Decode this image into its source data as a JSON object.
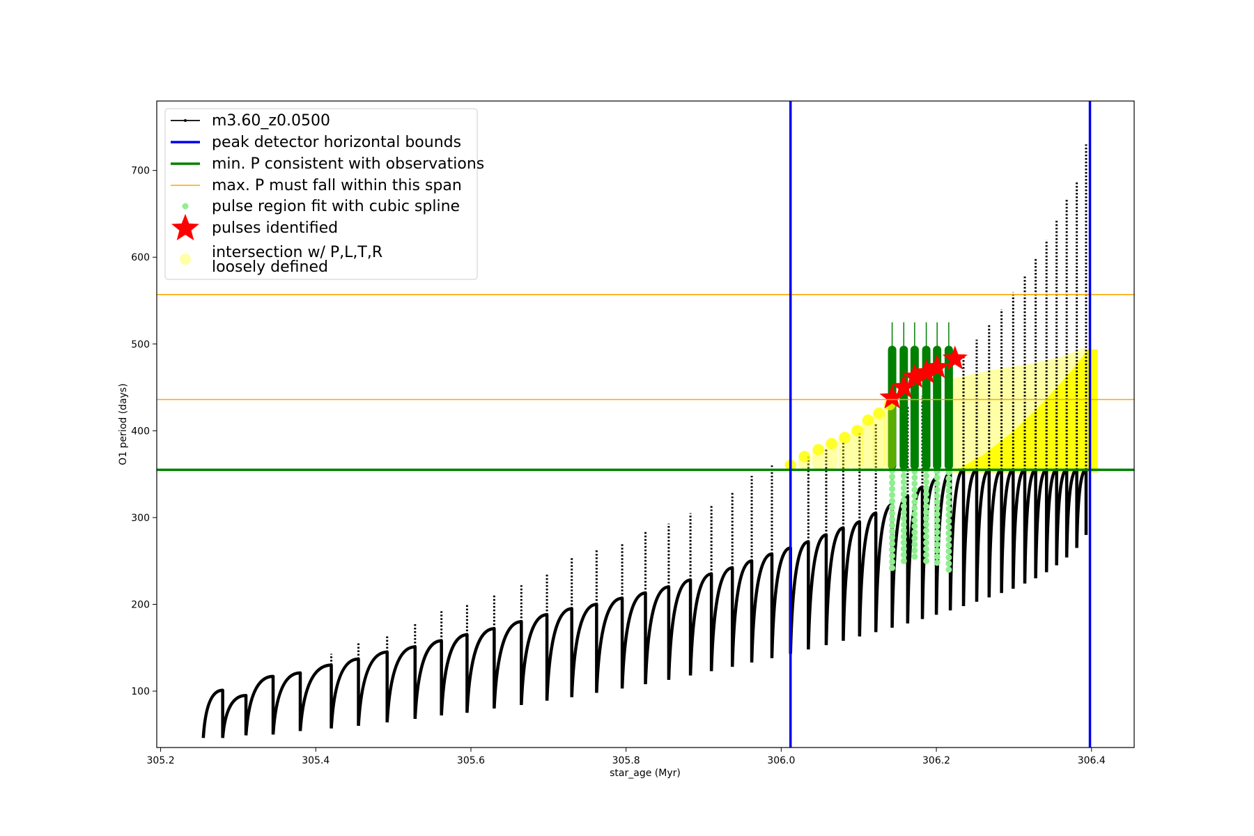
{
  "chart_data": {
    "type": "line",
    "xlabel": "star_age (Myr)",
    "ylabel": "O1 period (days)",
    "xlim": [
      305.195,
      306.455
    ],
    "ylim": [
      35,
      780
    ],
    "xticks": [
      305.2,
      305.4,
      305.6,
      305.8,
      306.0,
      306.2,
      306.4
    ],
    "xtick_labels": [
      "305.2",
      "305.4",
      "305.6",
      "305.8",
      "306.0",
      "306.2",
      "306.4"
    ],
    "yticks": [
      100,
      200,
      300,
      400,
      500,
      600,
      700
    ],
    "ytick_labels": [
      "100",
      "200",
      "300",
      "400",
      "500",
      "600",
      "700"
    ],
    "grid": false,
    "legend_position": "top-left",
    "colors": {
      "track": "#000000",
      "bounds": "#0000ee",
      "min_p": "#008000",
      "max_p_span": "#ffa500",
      "spline": "#90ee90",
      "pulses": "#ff0000",
      "intersection": "#ffff00"
    },
    "legend": [
      {
        "key": "track",
        "label": "m3.60_z0.0500"
      },
      {
        "key": "bounds",
        "label": "peak detector horizontal bounds"
      },
      {
        "key": "min_p",
        "label": "min. P consistent with observations"
      },
      {
        "key": "max_p_span",
        "label": "max. P must fall within this span"
      },
      {
        "key": "spline",
        "label": "pulse region fit with cubic spline"
      },
      {
        "key": "pulses",
        "label": "pulses identified"
      },
      {
        "key": "intersection",
        "label": "intersection w/ P,L,T,R",
        "label2": "loosely defined"
      }
    ],
    "vertical_bounds_x": [
      306.012,
      306.398
    ],
    "min_p_y": 355,
    "max_p_span_y": [
      436,
      557
    ],
    "track_start_x": 305.255,
    "track_pulses": [
      {
        "x": 305.28,
        "peak": 101,
        "trough": 46
      },
      {
        "x": 305.31,
        "peak": 95,
        "trough": 49
      },
      {
        "x": 305.345,
        "peak": 117,
        "trough": 50
      },
      {
        "x": 305.38,
        "peak": 121,
        "trough": 54
      },
      {
        "x": 305.42,
        "peak": 130,
        "trough": 57
      },
      {
        "x": 305.455,
        "peak": 137,
        "trough": 60
      },
      {
        "x": 305.492,
        "peak": 145,
        "trough": 64
      },
      {
        "x": 305.528,
        "peak": 151,
        "trough": 68
      },
      {
        "x": 305.562,
        "peak": 158,
        "trough": 72
      },
      {
        "x": 305.595,
        "peak": 165,
        "trough": 75
      },
      {
        "x": 305.63,
        "peak": 172,
        "trough": 80
      },
      {
        "x": 305.665,
        "peak": 180,
        "trough": 84
      },
      {
        "x": 305.698,
        "peak": 188,
        "trough": 89
      },
      {
        "x": 305.73,
        "peak": 195,
        "trough": 93
      },
      {
        "x": 305.762,
        "peak": 200,
        "trough": 98
      },
      {
        "x": 305.795,
        "peak": 207,
        "trough": 103
      },
      {
        "x": 305.825,
        "peak": 213,
        "trough": 108
      },
      {
        "x": 305.855,
        "peak": 220,
        "trough": 113
      },
      {
        "x": 305.883,
        "peak": 228,
        "trough": 118
      },
      {
        "x": 305.91,
        "peak": 235,
        "trough": 123
      },
      {
        "x": 305.937,
        "peak": 242,
        "trough": 128
      },
      {
        "x": 305.962,
        "peak": 250,
        "trough": 133
      },
      {
        "x": 305.988,
        "peak": 258,
        "trough": 138
      },
      {
        "x": 306.012,
        "peak": 265,
        "trough": 143
      },
      {
        "x": 306.035,
        "peak": 272,
        "trough": 148
      },
      {
        "x": 306.058,
        "peak": 280,
        "trough": 153
      },
      {
        "x": 306.08,
        "peak": 288,
        "trough": 158
      },
      {
        "x": 306.101,
        "peak": 295,
        "trough": 163
      },
      {
        "x": 306.122,
        "peak": 305,
        "trough": 168
      },
      {
        "x": 306.143,
        "peak": 315,
        "trough": 173
      },
      {
        "x": 306.163,
        "peak": 325,
        "trough": 178
      },
      {
        "x": 306.182,
        "peak": 335,
        "trough": 183
      },
      {
        "x": 306.2,
        "peak": 345,
        "trough": 188
      },
      {
        "x": 306.218,
        "peak": 352,
        "trough": 193
      },
      {
        "x": 306.235,
        "peak": 355,
        "trough": 198
      },
      {
        "x": 306.252,
        "peak": 355,
        "trough": 203
      },
      {
        "x": 306.268,
        "peak": 355,
        "trough": 208
      },
      {
        "x": 306.284,
        "peak": 355,
        "trough": 213
      },
      {
        "x": 306.299,
        "peak": 355,
        "trough": 218
      },
      {
        "x": 306.314,
        "peak": 355,
        "trough": 224
      },
      {
        "x": 306.328,
        "peak": 355,
        "trough": 230
      },
      {
        "x": 306.342,
        "peak": 355,
        "trough": 237
      },
      {
        "x": 306.355,
        "peak": 355,
        "trough": 245
      },
      {
        "x": 306.368,
        "peak": 355,
        "trough": 254
      },
      {
        "x": 306.381,
        "peak": 355,
        "trough": 265
      },
      {
        "x": 306.393,
        "peak": 355,
        "trough": 280
      }
    ],
    "spikes": [
      {
        "x": 305.28,
        "top": 101
      },
      {
        "x": 305.31,
        "top": 95
      },
      {
        "x": 305.345,
        "top": 117
      },
      {
        "x": 305.38,
        "top": 121
      },
      {
        "x": 305.42,
        "top": 143
      },
      {
        "x": 305.455,
        "top": 156
      },
      {
        "x": 305.492,
        "top": 165
      },
      {
        "x": 305.528,
        "top": 178
      },
      {
        "x": 305.562,
        "top": 192
      },
      {
        "x": 305.595,
        "top": 200
      },
      {
        "x": 305.63,
        "top": 212
      },
      {
        "x": 305.665,
        "top": 222
      },
      {
        "x": 305.698,
        "top": 235
      },
      {
        "x": 305.73,
        "top": 255
      },
      {
        "x": 305.762,
        "top": 263
      },
      {
        "x": 305.795,
        "top": 270
      },
      {
        "x": 305.825,
        "top": 285
      },
      {
        "x": 305.855,
        "top": 293
      },
      {
        "x": 305.883,
        "top": 305
      },
      {
        "x": 305.91,
        "top": 315
      },
      {
        "x": 305.937,
        "top": 330
      },
      {
        "x": 305.962,
        "top": 348
      },
      {
        "x": 305.988,
        "top": 360
      },
      {
        "x": 306.012,
        "top": 368
      },
      {
        "x": 306.035,
        "top": 372
      },
      {
        "x": 306.058,
        "top": 380
      },
      {
        "x": 306.08,
        "top": 388
      },
      {
        "x": 306.101,
        "top": 398
      },
      {
        "x": 306.122,
        "top": 408
      },
      {
        "x": 306.143,
        "top": 418
      },
      {
        "x": 306.163,
        "top": 428
      },
      {
        "x": 306.182,
        "top": 440
      },
      {
        "x": 306.2,
        "top": 450
      },
      {
        "x": 306.218,
        "top": 462
      },
      {
        "x": 306.235,
        "top": 488
      },
      {
        "x": 306.252,
        "top": 505
      },
      {
        "x": 306.268,
        "top": 522
      },
      {
        "x": 306.284,
        "top": 540
      },
      {
        "x": 306.299,
        "top": 560
      },
      {
        "x": 306.314,
        "top": 578
      },
      {
        "x": 306.328,
        "top": 598
      },
      {
        "x": 306.342,
        "top": 620
      },
      {
        "x": 306.355,
        "top": 642
      },
      {
        "x": 306.368,
        "top": 668
      },
      {
        "x": 306.381,
        "top": 688
      },
      {
        "x": 306.393,
        "top": 730
      }
    ],
    "spline_pulses": [
      {
        "x": 306.143,
        "top": 355,
        "bottom": 242
      },
      {
        "x": 306.158,
        "top": 355,
        "bottom": 250
      },
      {
        "x": 306.172,
        "top": 355,
        "bottom": 255
      },
      {
        "x": 306.187,
        "top": 355,
        "bottom": 250
      },
      {
        "x": 306.201,
        "top": 355,
        "bottom": 248
      },
      {
        "x": 306.216,
        "top": 355,
        "bottom": 240
      }
    ],
    "green_columns": [
      {
        "x": 306.143,
        "top": 498,
        "whisker": 525
      },
      {
        "x": 306.158,
        "top": 498,
        "whisker": 525
      },
      {
        "x": 306.172,
        "top": 498,
        "whisker": 525
      },
      {
        "x": 306.187,
        "top": 498,
        "whisker": 525
      },
      {
        "x": 306.201,
        "top": 498,
        "whisker": 525
      },
      {
        "x": 306.216,
        "top": 498,
        "whisker": 525
      }
    ],
    "pulses_identified": [
      {
        "x": 306.143,
        "y": 438
      },
      {
        "x": 306.158,
        "y": 450
      },
      {
        "x": 306.172,
        "y": 462
      },
      {
        "x": 306.187,
        "y": 467
      },
      {
        "x": 306.201,
        "y": 473
      },
      {
        "x": 306.224,
        "y": 483
      }
    ],
    "intersection_points": [
      {
        "x": 306.012,
        "y": 360
      },
      {
        "x": 306.03,
        "y": 370
      },
      {
        "x": 306.048,
        "y": 378
      },
      {
        "x": 306.065,
        "y": 385
      },
      {
        "x": 306.082,
        "y": 392
      },
      {
        "x": 306.098,
        "y": 400
      },
      {
        "x": 306.112,
        "y": 412
      },
      {
        "x": 306.126,
        "y": 420
      },
      {
        "x": 306.14,
        "y": 430
      }
    ],
    "intersection_region": [
      {
        "x": 306.22,
        "y": 352
      },
      {
        "x": 306.22,
        "y": 460
      },
      {
        "x": 306.27,
        "y": 470
      },
      {
        "x": 306.32,
        "y": 477
      },
      {
        "x": 306.36,
        "y": 485
      },
      {
        "x": 306.39,
        "y": 495
      },
      {
        "x": 306.408,
        "y": 494
      },
      {
        "x": 306.408,
        "y": 352
      }
    ],
    "intersection_core": [
      {
        "x": 306.22,
        "y": 352
      },
      {
        "x": 306.26,
        "y": 372
      },
      {
        "x": 306.3,
        "y": 400
      },
      {
        "x": 306.34,
        "y": 435
      },
      {
        "x": 306.375,
        "y": 470
      },
      {
        "x": 306.395,
        "y": 493
      },
      {
        "x": 306.408,
        "y": 494
      },
      {
        "x": 306.408,
        "y": 352
      }
    ]
  }
}
